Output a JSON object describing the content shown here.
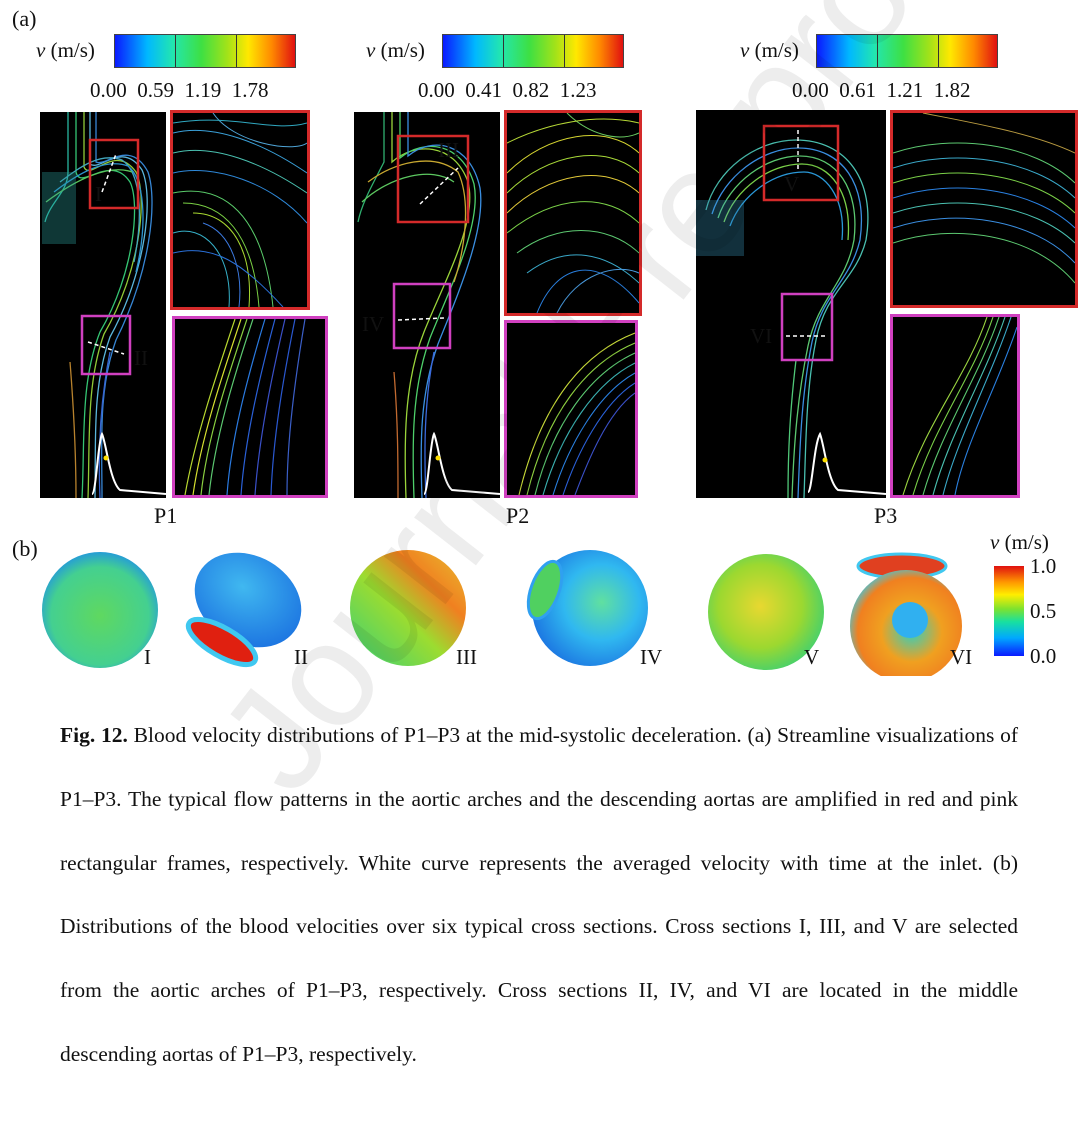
{
  "panel_a_label": "(a)",
  "panel_b_label": "(b)",
  "colorbars": [
    {
      "title_var": "v",
      "title_unit": "(m/s)",
      "ticks": [
        "0.00",
        "0.59",
        "1.19",
        "1.78"
      ]
    },
    {
      "title_var": "v",
      "title_unit": "(m/s)",
      "ticks": [
        "0.00",
        "0.41",
        "0.82",
        "1.23"
      ]
    },
    {
      "title_var": "v",
      "title_unit": "(m/s)",
      "ticks": [
        "0.00",
        "0.61",
        "1.21",
        "1.82"
      ]
    }
  ],
  "cases": [
    "P1",
    "P2",
    "P3"
  ],
  "panel_a_sections": [
    "I",
    "II",
    "III",
    "IV",
    "V",
    "VI"
  ],
  "cross_sections": [
    "I",
    "II",
    "III",
    "IV",
    "V",
    "VI"
  ],
  "legend_b": {
    "title_var": "v",
    "title_unit": "(m/s)",
    "ticks": [
      "1.0",
      "0.5",
      "0.0"
    ]
  },
  "caption": {
    "label": "Fig. 12.",
    "text": "Blood velocity distributions of P1–P3 at the mid-systolic deceleration. (a) Streamline visualizations of P1–P3. The typical flow patterns in the aortic arches and the descending aortas are amplified in red and pink rectangular frames, respectively. White curve represents the averaged velocity with time at the inlet. (b) Distributions of the blood velocities over six typical cross sections. Cross sections I, III, and V are selected from the aortic arches of P1–P3, respectively. Cross sections II, IV, and VI are located in the middle descending aortas of P1–P3, respectively."
  },
  "watermark": "Journal Pre-proof",
  "colors": {
    "red_frame": "#d42a2a",
    "pink_frame": "#d040c0",
    "background": "#000000"
  }
}
